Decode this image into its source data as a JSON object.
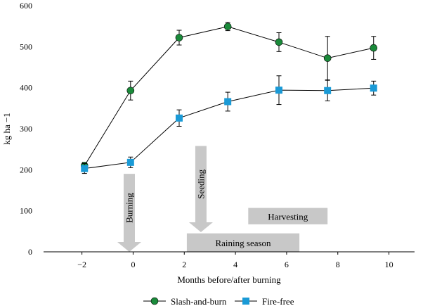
{
  "chart_data": {
    "type": "line",
    "title": "",
    "xlabel": "Months before/after burning",
    "ylabel": "kg ha −1",
    "xlim": [
      -3.5,
      11
    ],
    "ylim": [
      0,
      600
    ],
    "xticks": [
      -2,
      0,
      2,
      4,
      6,
      8,
      10
    ],
    "xtick_labels": [
      "−2",
      "0",
      "2",
      "4",
      "6",
      "8",
      "10"
    ],
    "yticks": [
      0,
      100,
      200,
      300,
      400,
      500,
      600
    ],
    "ytick_labels": [
      "0",
      "100",
      "200",
      "300",
      "400",
      "500",
      "600"
    ],
    "grid": false,
    "legend_position": "bottom",
    "series": [
      {
        "name": "Slash-and-burn",
        "marker": "circle",
        "color": "#1a8a3a",
        "x": [
          -1.9,
          -0.1,
          1.8,
          3.7,
          5.7,
          7.6,
          9.4
        ],
        "values": [
          210,
          393,
          522,
          549,
          511,
          472,
          497
        ],
        "errors": [
          8,
          23,
          18,
          10,
          23,
          53,
          28
        ]
      },
      {
        "name": "Fire-free",
        "marker": "square",
        "color": "#1a9ad6",
        "x": [
          -1.9,
          -0.1,
          1.8,
          3.7,
          5.7,
          7.6,
          9.4
        ],
        "values": [
          203,
          218,
          326,
          366,
          394,
          393,
          399
        ],
        "errors": [
          12,
          13,
          20,
          23,
          35,
          25,
          17
        ]
      }
    ],
    "annotations": [
      {
        "name": "burning",
        "label": "Burning",
        "kind": "arrow-down",
        "x": -0.15,
        "y_from": 190,
        "y_to": 0
      },
      {
        "name": "seeding",
        "label": "Seeding",
        "kind": "arrow-down",
        "x": 2.65,
        "y_from": 258,
        "y_to": 48
      },
      {
        "name": "raining-season",
        "label": "Raining season",
        "kind": "band",
        "x_from": 2.1,
        "x_to": 6.5,
        "y_from": 0,
        "y_to": 45
      },
      {
        "name": "harvesting",
        "label": "Harvesting",
        "kind": "band",
        "x_from": 4.5,
        "x_to": 7.6,
        "y_from": 67,
        "y_to": 107
      }
    ],
    "colors": {
      "annotation_fill": "#c8c8c8",
      "line": "#000000"
    }
  }
}
